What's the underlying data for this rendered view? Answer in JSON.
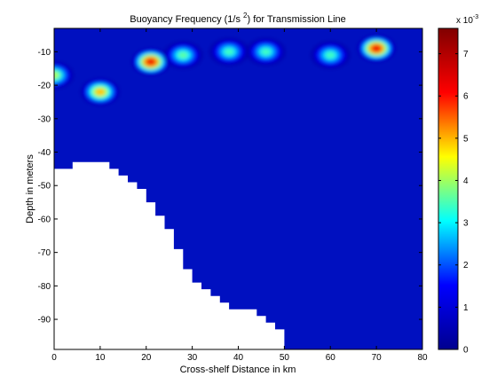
{
  "chart_data": {
    "type": "heatmap",
    "title": "Buoyancy Frequency (1/s ",
    "title_superscript": "2",
    "title_suffix": ") for Transmission Line",
    "xlabel": "Cross-shelf Distance in km",
    "ylabel": "Depth in meters",
    "xlim": [
      0,
      80
    ],
    "ylim": [
      -99,
      -3
    ],
    "xticks": [
      0,
      10,
      20,
      30,
      40,
      50,
      60,
      70,
      80
    ],
    "yticks": [
      -10,
      -20,
      -30,
      -40,
      -50,
      -60,
      -70,
      -80,
      -90
    ],
    "colorbar": {
      "min": 0,
      "max": 0.0076,
      "ticks": [
        0,
        1,
        2,
        3,
        4,
        5,
        6,
        7
      ],
      "multiplier_text": "x 10",
      "multiplier_exponent": "-3"
    },
    "colormap": [
      "#00008f",
      "#0000ff",
      "#00ffff",
      "#ffff00",
      "#ff0000",
      "#800000"
    ],
    "blobs": [
      {
        "x": 0,
        "depth": -17,
        "value": 0.0048
      },
      {
        "x": 10,
        "depth": -22,
        "value": 0.0058
      },
      {
        "x": 21,
        "depth": -13,
        "value": 0.0074
      },
      {
        "x": 28,
        "depth": -11,
        "value": 0.0042
      },
      {
        "x": 38,
        "depth": -10,
        "value": 0.004
      },
      {
        "x": 46,
        "depth": -10,
        "value": 0.004
      },
      {
        "x": 60,
        "depth": -11,
        "value": 0.004
      },
      {
        "x": 70,
        "depth": -9,
        "value": 0.0074
      }
    ],
    "bottom_profile": [
      {
        "x": 0,
        "depth": -45
      },
      {
        "x": 4,
        "depth": -45
      },
      {
        "x": 4,
        "depth": -43
      },
      {
        "x": 12,
        "depth": -43
      },
      {
        "x": 12,
        "depth": -45
      },
      {
        "x": 14,
        "depth": -45
      },
      {
        "x": 14,
        "depth": -47
      },
      {
        "x": 16,
        "depth": -47
      },
      {
        "x": 16,
        "depth": -49
      },
      {
        "x": 18,
        "depth": -49
      },
      {
        "x": 18,
        "depth": -51
      },
      {
        "x": 20,
        "depth": -51
      },
      {
        "x": 20,
        "depth": -55
      },
      {
        "x": 22,
        "depth": -55
      },
      {
        "x": 22,
        "depth": -59
      },
      {
        "x": 24,
        "depth": -59
      },
      {
        "x": 24,
        "depth": -63
      },
      {
        "x": 26,
        "depth": -63
      },
      {
        "x": 26,
        "depth": -69
      },
      {
        "x": 28,
        "depth": -69
      },
      {
        "x": 28,
        "depth": -75
      },
      {
        "x": 30,
        "depth": -75
      },
      {
        "x": 30,
        "depth": -79
      },
      {
        "x": 32,
        "depth": -79
      },
      {
        "x": 32,
        "depth": -81
      },
      {
        "x": 34,
        "depth": -81
      },
      {
        "x": 34,
        "depth": -83
      },
      {
        "x": 36,
        "depth": -83
      },
      {
        "x": 36,
        "depth": -85
      },
      {
        "x": 38,
        "depth": -85
      },
      {
        "x": 38,
        "depth": -87
      },
      {
        "x": 44,
        "depth": -87
      },
      {
        "x": 44,
        "depth": -89
      },
      {
        "x": 46,
        "depth": -89
      },
      {
        "x": 46,
        "depth": -91
      },
      {
        "x": 48,
        "depth": -91
      },
      {
        "x": 48,
        "depth": -93
      },
      {
        "x": 50,
        "depth": -93
      },
      {
        "x": 50,
        "depth": -99
      }
    ]
  }
}
